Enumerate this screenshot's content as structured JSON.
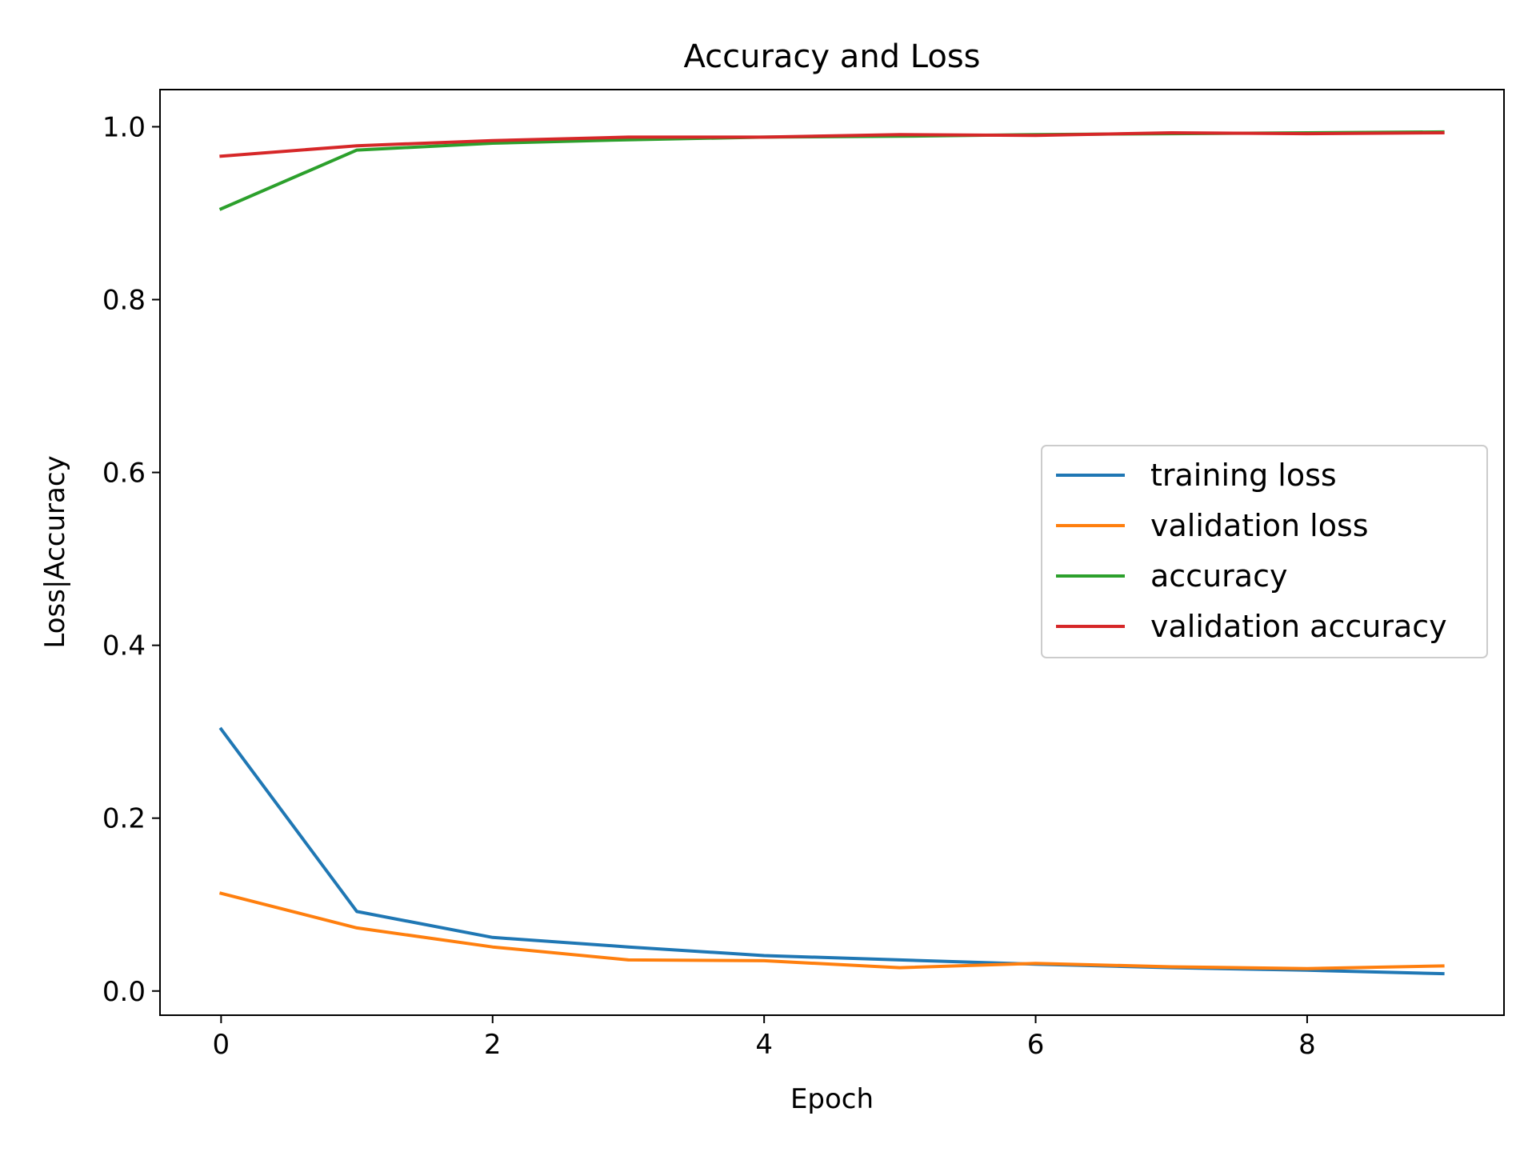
{
  "chart_data": {
    "type": "line",
    "title": "Accuracy and Loss",
    "xlabel": "Epoch",
    "ylabel": "Loss|Accuracy",
    "xlim": [
      -0.45,
      9.45
    ],
    "ylim": [
      -0.028,
      1.043
    ],
    "x_ticks": [
      0,
      2,
      4,
      6,
      8
    ],
    "x_tick_labels": [
      "0",
      "2",
      "4",
      "6",
      "8"
    ],
    "y_ticks": [
      0.0,
      0.2,
      0.4,
      0.6,
      0.8,
      1.0
    ],
    "y_tick_labels": [
      "0.0",
      "0.2",
      "0.4",
      "0.6",
      "0.8",
      "1.0"
    ],
    "grid": false,
    "legend_position": "center-right",
    "x": [
      0,
      1,
      2,
      3,
      4,
      5,
      6,
      7,
      8,
      9
    ],
    "series": [
      {
        "name": "training loss",
        "color": "#1f77b4",
        "values": [
          0.303,
          0.092,
          0.062,
          0.051,
          0.041,
          0.036,
          0.031,
          0.027,
          0.024,
          0.02
        ]
      },
      {
        "name": "validation loss",
        "color": "#ff7f0e",
        "values": [
          0.113,
          0.073,
          0.051,
          0.036,
          0.035,
          0.027,
          0.032,
          0.028,
          0.026,
          0.029
        ]
      },
      {
        "name": "accuracy",
        "color": "#2ca02c",
        "values": [
          0.905,
          0.973,
          0.981,
          0.985,
          0.988,
          0.989,
          0.991,
          0.992,
          0.993,
          0.994
        ]
      },
      {
        "name": "validation accuracy",
        "color": "#d62728",
        "values": [
          0.966,
          0.978,
          0.984,
          0.988,
          0.988,
          0.991,
          0.99,
          0.993,
          0.992,
          0.993
        ]
      }
    ]
  }
}
